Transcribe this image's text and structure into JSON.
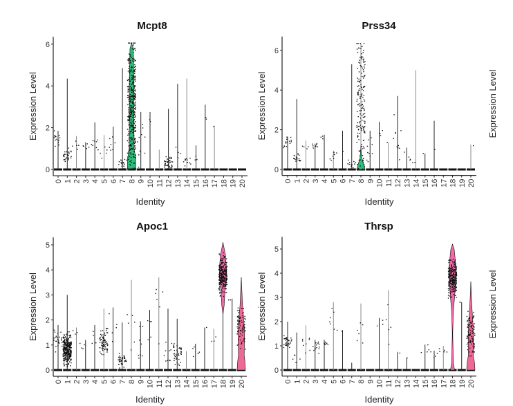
{
  "chart_data": [
    {
      "type": "violin",
      "title": "Mcpt8",
      "xlabel": "Identity",
      "ylabel": "Expression Level",
      "categories": [
        "0",
        "1",
        "2",
        "3",
        "4",
        "5",
        "6",
        "7",
        "8",
        "9",
        "10",
        "11",
        "12",
        "13",
        "14",
        "15",
        "16",
        "17",
        "18",
        "19",
        "20"
      ],
      "yticks": [
        0,
        2,
        4,
        6
      ],
      "ylim": [
        -0.3,
        6.35
      ],
      "max_values": [
        1.85,
        4.35,
        1.6,
        1.3,
        2.25,
        1.65,
        2.05,
        4.85,
        6.05,
        2.75,
        2.75,
        0.95,
        2.9,
        4.1,
        4.35,
        1.15,
        3.1,
        2.1,
        0,
        0,
        0
      ],
      "point_clusters": [
        [
          1.4,
          0.3,
          14
        ],
        [
          0.7,
          0.3,
          30
        ],
        [
          1,
          0.3,
          5
        ],
        [
          1.1,
          0.2,
          5
        ],
        [
          1.3,
          0.4,
          8
        ],
        [
          0.9,
          0.4,
          5
        ],
        [
          1.2,
          0.6,
          7
        ],
        [
          0.3,
          0.2,
          18
        ],
        [
          3,
          2.8,
          400
        ],
        [
          1.4,
          1,
          10
        ],
        [
          2.4,
          0.2,
          2
        ],
        [
          0,
          0,
          0
        ],
        [
          0.3,
          0.3,
          40
        ],
        [
          0.8,
          0.3,
          4
        ],
        [
          0.4,
          0.2,
          12
        ],
        [
          0.55,
          0.1,
          3
        ],
        [
          2.6,
          0.2,
          2
        ],
        [
          2.05,
          0,
          1
        ],
        [
          0,
          0,
          0
        ],
        [
          0,
          0,
          0
        ],
        [
          0,
          0,
          0
        ]
      ],
      "highlighted": [
        {
          "cluster": 8,
          "color": "#2dbd7a",
          "profile": [
            [
              0,
              1
            ],
            [
              0.5,
              1
            ],
            [
              1,
              0.6
            ],
            [
              2,
              0.55
            ],
            [
              4,
              0.55
            ],
            [
              5,
              0.5
            ],
            [
              5.8,
              0.4
            ],
            [
              6.05,
              0
            ]
          ]
        }
      ]
    },
    {
      "type": "violin",
      "title": "Prss34",
      "xlabel": "Identity",
      "ylabel": "Expression Level",
      "categories": [
        "0",
        "1",
        "2",
        "3",
        "4",
        "5",
        "6",
        "7",
        "8",
        "9",
        "10",
        "11",
        "12",
        "13",
        "14",
        "15",
        "16",
        "17",
        "18",
        "19",
        "20"
      ],
      "yticks": [
        0,
        2,
        4,
        6
      ],
      "ylim": [
        -0.3,
        6.7
      ],
      "max_values": [
        1.65,
        3.55,
        1.45,
        1.3,
        1.75,
        0.95,
        1.95,
        5.3,
        6.35,
        1.95,
        2.4,
        1.35,
        3.7,
        1.1,
        5.0,
        0.8,
        2.45,
        0,
        0,
        0,
        1.25
      ],
      "point_clusters": [
        [
          1.3,
          0.25,
          14
        ],
        [
          0.6,
          0.2,
          20
        ],
        [
          1.1,
          0.1,
          4
        ],
        [
          1.2,
          0.15,
          8
        ],
        [
          1.5,
          0.2,
          3
        ],
        [
          0.7,
          0.2,
          8
        ],
        [
          0.9,
          0,
          1
        ],
        [
          0.3,
          0.2,
          12
        ],
        [
          3.2,
          3,
          180
        ],
        [
          1,
          0.6,
          10
        ],
        [
          1.8,
          0.2,
          3
        ],
        [
          1.35,
          0,
          1
        ],
        [
          1.2,
          1,
          10
        ],
        [
          0.6,
          0.2,
          4
        ],
        [
          0.35,
          0,
          2
        ],
        [
          0.8,
          0,
          1
        ],
        [
          1.0,
          0,
          1
        ],
        [
          0,
          0,
          0
        ],
        [
          0,
          0,
          0
        ],
        [
          0,
          0,
          0
        ],
        [
          1.2,
          0,
          1
        ]
      ],
      "highlighted": [
        {
          "cluster": 8,
          "color": "#2dbd7a",
          "profile": [
            [
              0,
              1
            ],
            [
              0.3,
              0.6
            ],
            [
              0.6,
              0.2
            ],
            [
              1,
              0.05
            ],
            [
              1.2,
              0
            ]
          ]
        }
      ]
    },
    {
      "type": "violin",
      "title": "Apoc1",
      "xlabel": "Identity",
      "ylabel": "Expression Level",
      "categories": [
        "0",
        "1",
        "2",
        "3",
        "4",
        "5",
        "6",
        "7",
        "8",
        "9",
        "10",
        "11",
        "12",
        "13",
        "14",
        "15",
        "16",
        "17",
        "18",
        "19",
        "20"
      ],
      "yticks": [
        0,
        1,
        2,
        3,
        4,
        5
      ],
      "ylim": [
        -0.25,
        5.3
      ],
      "max_values": [
        1.8,
        3.0,
        1.7,
        1.2,
        1.8,
        2.45,
        2.5,
        1.9,
        3.6,
        1.95,
        2.4,
        3.7,
        2.45,
        2.05,
        0.75,
        1.05,
        1.7,
        1.65,
        5.1,
        2.85,
        3.7
      ],
      "point_clusters": [
        [
          1.2,
          0.4,
          25
        ],
        [
          0.8,
          0.5,
          300
        ],
        [
          1.4,
          0.3,
          4
        ],
        [
          1,
          0.2,
          3
        ],
        [
          1.3,
          0.4,
          4
        ],
        [
          1.1,
          0.5,
          80
        ],
        [
          1.5,
          0.8,
          5
        ],
        [
          0.4,
          0.2,
          40
        ],
        [
          1.5,
          0.9,
          6
        ],
        [
          0.8,
          0.6,
          8
        ],
        [
          1.8,
          0.6,
          5
        ],
        [
          2.5,
          1,
          6
        ],
        [
          0.6,
          0.4,
          10
        ],
        [
          0.7,
          0.4,
          40
        ],
        [
          0,
          0,
          0
        ],
        [
          0.65,
          0.2,
          6
        ],
        [
          1.7,
          0,
          1
        ],
        [
          1.2,
          0.4,
          3
        ],
        [
          3.8,
          0.6,
          250
        ],
        [
          2.8,
          0,
          2
        ],
        [
          1.7,
          0.7,
          80
        ]
      ],
      "highlighted": [
        {
          "cluster": 18,
          "color": "#ee6aa7",
          "profile": [
            [
              2.2,
              0
            ],
            [
              2.6,
              0.3
            ],
            [
              3.2,
              0.5
            ],
            [
              3.8,
              0.9
            ],
            [
              4.2,
              0.8
            ],
            [
              4.6,
              0.6
            ],
            [
              5.1,
              0
            ]
          ]
        },
        {
          "cluster": 20,
          "color": "#ee6a96",
          "profile": [
            [
              0,
              1
            ],
            [
              0.3,
              0.9
            ],
            [
              0.6,
              0.7
            ],
            [
              1,
              0.75
            ],
            [
              1.5,
              0.8
            ],
            [
              2,
              0.6
            ],
            [
              2.6,
              0.3
            ],
            [
              3.7,
              0
            ]
          ]
        }
      ]
    },
    {
      "type": "violin",
      "title": "Thrsp",
      "xlabel": "Identity",
      "ylabel": "Expression Level",
      "categories": [
        "0",
        "1",
        "2",
        "3",
        "4",
        "5",
        "6",
        "7",
        "8",
        "9",
        "10",
        "11",
        "12",
        "13",
        "14",
        "15",
        "16",
        "17",
        "18",
        "19",
        "20"
      ],
      "yticks": [
        0,
        1,
        2,
        3,
        4,
        5
      ],
      "ylim": [
        -0.25,
        5.5
      ],
      "max_values": [
        2.0,
        1.55,
        1.85,
        1.25,
        1.25,
        2.8,
        1.65,
        0.3,
        2.75,
        0,
        2.15,
        3.3,
        0.75,
        0.5,
        0,
        1.05,
        0.8,
        1.0,
        5.2,
        2.8,
        3.65
      ],
      "point_clusters": [
        [
          1.2,
          0.2,
          30
        ],
        [
          0.6,
          0.3,
          5
        ],
        [
          1.2,
          0.4,
          8
        ],
        [
          0.95,
          0.2,
          15
        ],
        [
          1.1,
          0.1,
          8
        ],
        [
          2.0,
          0.7,
          7
        ],
        [
          1.6,
          0,
          1
        ],
        [
          0,
          0,
          0
        ],
        [
          1.6,
          0.5,
          6
        ],
        [
          0,
          0,
          0
        ],
        [
          2,
          0.2,
          3
        ],
        [
          1.8,
          0.8,
          5
        ],
        [
          0.7,
          0,
          1
        ],
        [
          0.5,
          0,
          1
        ],
        [
          0,
          0,
          0
        ],
        [
          0.8,
          0.25,
          4
        ],
        [
          0.65,
          0.15,
          4
        ],
        [
          0.85,
          0.15,
          5
        ],
        [
          3.8,
          0.6,
          250
        ],
        [
          2.8,
          0,
          2
        ],
        [
          1.5,
          0.7,
          100
        ]
      ],
      "highlighted": [
        {
          "cluster": 18,
          "color": "#ee6aa7",
          "profile": [
            [
              0,
              0.5
            ],
            [
              0.3,
              0.2
            ],
            [
              1.5,
              0.05
            ],
            [
              2.4,
              0.2
            ],
            [
              3,
              0.5
            ],
            [
              3.5,
              0.7
            ],
            [
              4,
              0.9
            ],
            [
              4.5,
              0.7
            ],
            [
              5,
              0.4
            ],
            [
              5.2,
              0
            ]
          ]
        },
        {
          "cluster": 20,
          "color": "#ee6a96",
          "profile": [
            [
              0,
              1
            ],
            [
              0.3,
              0.9
            ],
            [
              0.6,
              0.6
            ],
            [
              1,
              0.6
            ],
            [
              1.4,
              0.65
            ],
            [
              2,
              0.5
            ],
            [
              2.5,
              0.3
            ],
            [
              3,
              0.15
            ],
            [
              3.65,
              0
            ]
          ]
        }
      ]
    }
  ],
  "cropped_right_labels": [
    "Expression Level",
    "Expression Level"
  ]
}
